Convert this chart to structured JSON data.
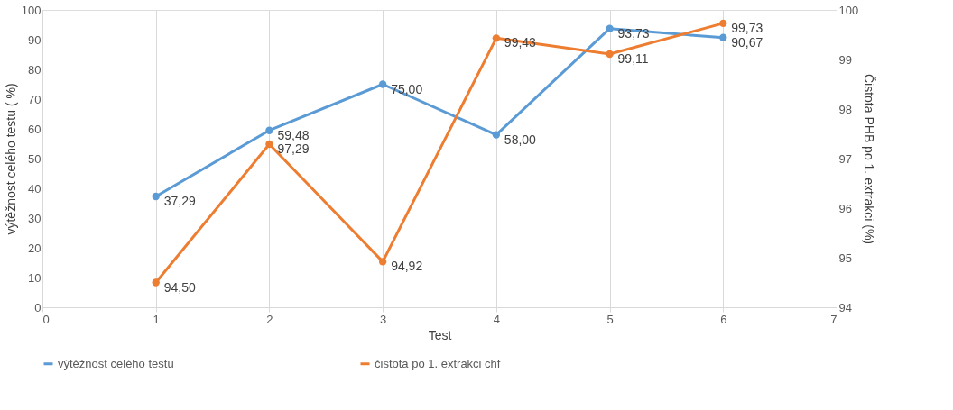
{
  "chart_data": {
    "type": "line",
    "xlabel": "Test",
    "ylabel": "výtěžnost celého testu ( %)",
    "y2label": "Čistota PHB po 1. extrakci (%)",
    "x": [
      1,
      2,
      3,
      4,
      5,
      6
    ],
    "series": [
      {
        "name": "výtěžnost celého testu",
        "color": "#5b9bd5",
        "values": [
          37.29,
          59.48,
          75.0,
          58.0,
          93.73,
          90.67
        ],
        "value_labels": [
          "37,29",
          "59,48",
          "75,00",
          "58,00",
          "93,73",
          "90,67"
        ]
      },
      {
        "name": "čistota po 1. extrakci chf",
        "color": "#ed7d31",
        "axis": "y2",
        "values": [
          94.5,
          97.29,
          94.92,
          99.43,
          99.11,
          99.73
        ],
        "value_labels": [
          "94,50",
          "97,29",
          "94,92",
          "99,43",
          "99,11",
          "99,73"
        ]
      }
    ],
    "xlim": [
      0,
      7
    ],
    "xticks": [
      0,
      1,
      2,
      3,
      4,
      5,
      6,
      7
    ],
    "ylim": [
      0,
      100
    ],
    "yticks": [
      0,
      10,
      20,
      30,
      40,
      50,
      60,
      70,
      80,
      90,
      100
    ],
    "y2lim": [
      94,
      100
    ],
    "y2ticks": [
      94,
      95,
      96,
      97,
      98,
      99,
      100
    ],
    "grid": "x",
    "legend": "bottom",
    "marker": "circle",
    "line_style": "solid"
  }
}
